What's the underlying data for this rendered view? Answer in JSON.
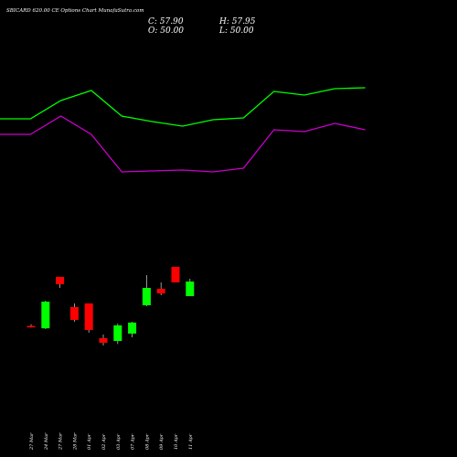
{
  "header": {
    "title": "SBICARD 620.00  CE Options  Chart MunafaSutra.com",
    "close": "C: 57.90",
    "high": "H: 57.95",
    "open": "O: 50.00",
    "low": "L: 50.00"
  },
  "colors": {
    "background": "#000000",
    "up": "#00ff00",
    "down": "#ff0000",
    "upper_line": "#00ff00",
    "lower_line": "#cc00cc",
    "text": "#ffffff"
  },
  "chart_data": {
    "type": "candlestick",
    "categories": [
      "27 Mar",
      "24 Mar",
      "27 Mar",
      "28 Mar",
      "01 Apr",
      "02 Apr",
      "03 Apr",
      "07 Apr",
      "08 Apr",
      "09 Apr",
      "10 Apr",
      "11 Apr"
    ],
    "candles": [
      {
        "open": 47.7,
        "high": 48.6,
        "low": 46.9,
        "close": 46.9
      },
      {
        "open": 46.4,
        "high": 61.5,
        "low": 46.0,
        "close": 61.0
      },
      {
        "open": 74.5,
        "high": 74.5,
        "low": 68.5,
        "close": 70.5
      },
      {
        "open": 58.0,
        "high": 60.0,
        "low": 50.0,
        "close": 51.0
      },
      {
        "open": 60.0,
        "high": 60.0,
        "low": 44.0,
        "close": 45.5
      },
      {
        "open": 41.0,
        "high": 43.0,
        "low": 37.0,
        "close": 38.5
      },
      {
        "open": 39.5,
        "high": 49.0,
        "low": 37.8,
        "close": 48.0
      },
      {
        "open": 43.5,
        "high": 50.0,
        "low": 41.5,
        "close": 49.5
      },
      {
        "open": 59.0,
        "high": 75.5,
        "low": 58.5,
        "close": 68.5
      },
      {
        "open": 68.0,
        "high": 71.5,
        "low": 64.5,
        "close": 65.5
      },
      {
        "open": 80.0,
        "high": 80.0,
        "low": 71.5,
        "close": 71.5
      },
      {
        "open": 64.0,
        "high": 73.5,
        "low": 64.0,
        "close": 72.0
      }
    ],
    "upper_band": [
      180,
      180,
      200,
      211,
      183,
      177,
      172,
      179,
      181,
      210,
      206,
      213,
      214
    ],
    "lower_band": [
      163,
      163,
      183,
      163,
      122,
      123,
      124,
      122,
      126,
      168,
      166,
      175,
      168
    ],
    "band_x_positions": [
      0,
      1,
      2,
      3,
      4,
      5,
      6,
      7,
      8,
      9,
      10,
      11,
      12
    ],
    "ylim": [
      0,
      230
    ]
  }
}
